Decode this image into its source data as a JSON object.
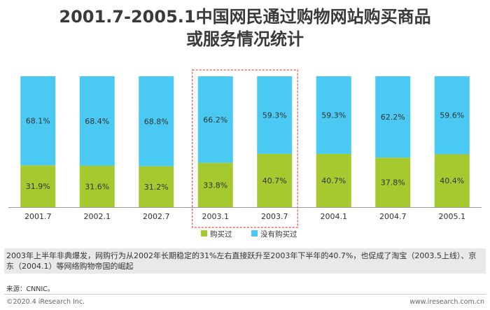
{
  "title_line1": "2001.7-2005.1中国网民通过购物网站购买商品",
  "title_line2": "或服务情况统计",
  "chart_data": {
    "type": "bar",
    "stacked": true,
    "percent_stacked": true,
    "categories": [
      "2001.7",
      "2002.1",
      "2002.7",
      "2003.1",
      "2003.7",
      "2004.1",
      "2004.7",
      "2005.1"
    ],
    "series": [
      {
        "name": "购买过",
        "values": [
          31.9,
          31.6,
          31.2,
          33.8,
          40.7,
          40.7,
          37.8,
          40.4
        ],
        "color": "#a6c930"
      },
      {
        "name": "没有购买过",
        "values": [
          68.1,
          68.4,
          68.8,
          66.2,
          59.3,
          59.3,
          62.2,
          59.6
        ],
        "color": "#4ac9f2"
      }
    ],
    "highlight_categories": [
      "2003.1",
      "2003.7"
    ],
    "highlight_color": "#e8504a",
    "ylim": [
      0,
      100
    ],
    "unit": "%",
    "legend_position": "bottom-center"
  },
  "note": "2003年上半年非典爆发，网购行为从2002年长期稳定的31%左右直接跃升至2003年下半年的40.7%，也促成了淘宝（2003.5上线）、京东（2004.1）等网络购物帝国的崛起",
  "source": "来源：CNNIC。",
  "copyright": "©2020.4 iResearch Inc.",
  "website": "www.iresearch.com.cn"
}
